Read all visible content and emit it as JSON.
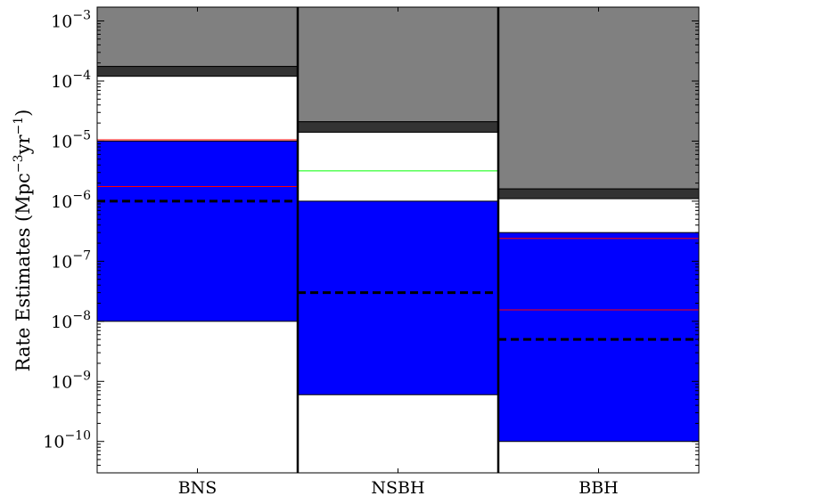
{
  "chart_data": {
    "type": "bar",
    "yscale": "log",
    "ylim": [
      3e-11,
      0.0017
    ],
    "ylabel": {
      "main": "Rate Estimates (Mpc",
      "exp1": "−3",
      "mid": "yr",
      "exp2": "−1",
      "tail": ")"
    },
    "categories": [
      "BNS",
      "NSBH",
      "BBH"
    ],
    "yticks": [
      {
        "value": 1e-10,
        "base": "10",
        "exp": "−10"
      },
      {
        "value": 1e-09,
        "base": "10",
        "exp": "−9"
      },
      {
        "value": 1e-08,
        "base": "10",
        "exp": "−8"
      },
      {
        "value": 1e-07,
        "base": "10",
        "exp": "−7"
      },
      {
        "value": 1e-06,
        "base": "10",
        "exp": "−6"
      },
      {
        "value": 1e-05,
        "base": "10",
        "exp": "−5"
      },
      {
        "value": 0.0001,
        "base": "10",
        "exp": "−4"
      },
      {
        "value": 0.001,
        "base": "10",
        "exp": "−3"
      }
    ],
    "bands": [
      {
        "category": "BNS",
        "blue_range": [
          1e-08,
          1e-05
        ],
        "dark_gray_range": [
          0.00012,
          0.000175
        ],
        "gray_from": 0.000175,
        "dashed_line": 1e-06,
        "red_lines": [
          1.05e-05,
          1.75e-06
        ],
        "green_lines": []
      },
      {
        "category": "NSBH",
        "blue_range": [
          6e-10,
          1e-06
        ],
        "dark_gray_range": [
          1.4e-05,
          2.1e-05
        ],
        "gray_from": 2.1e-05,
        "dashed_line": 3e-08,
        "red_lines": [],
        "green_lines": [
          3.2e-06
        ]
      },
      {
        "category": "BBH",
        "blue_range": [
          1e-10,
          3e-07
        ],
        "dark_gray_range": [
          1.1e-06,
          1.6e-06
        ],
        "gray_from": 1.6e-06,
        "dashed_line": 5e-09,
        "red_lines": [
          2.4e-07,
          1.55e-08
        ],
        "green_lines": []
      }
    ],
    "colors": {
      "blue": "#0000ff",
      "gray": "#808080",
      "dark_gray": "#333333",
      "red": "#ff0000",
      "green": "#00ff00",
      "dashed": "#000000"
    }
  }
}
